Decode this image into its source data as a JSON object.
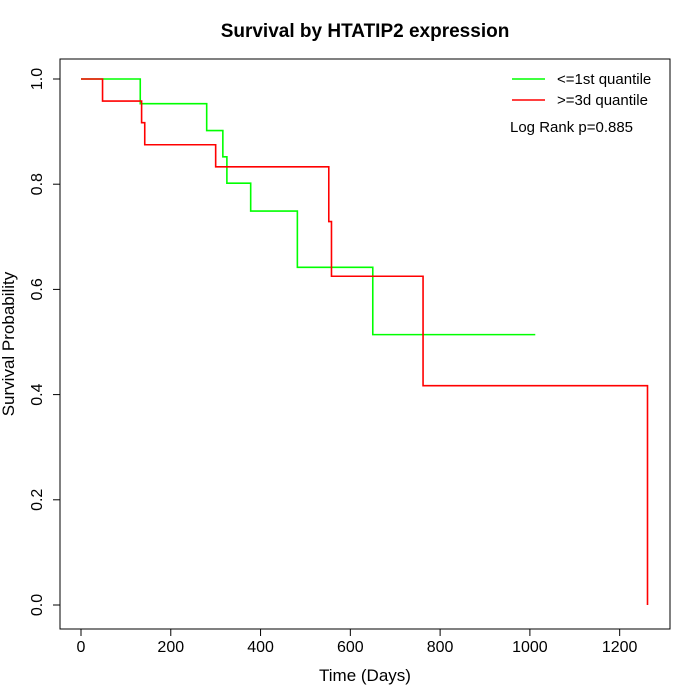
{
  "chart_data": {
    "type": "line",
    "subtype": "kaplan-meier step",
    "title": "Survival by HTATIP2 expression",
    "xlabel": "Time (Days)",
    "ylabel": "Survival Probability",
    "xlim": [
      0,
      1265
    ],
    "ylim": [
      0,
      1.0
    ],
    "xticks": [
      0,
      200,
      400,
      600,
      800,
      1000,
      1200
    ],
    "yticks": [
      0.0,
      0.2,
      0.4,
      0.6,
      0.8,
      1.0
    ],
    "xtick_labels": [
      "0",
      "200",
      "400",
      "600",
      "800",
      "1000",
      "1200"
    ],
    "ytick_labels": [
      "0.0",
      "0.2",
      "0.4",
      "0.6",
      "0.8",
      "1.0"
    ],
    "grid": false,
    "legend_position": "top-right",
    "annotation": "Log Rank p=0.885",
    "series": [
      {
        "name": "<=1st quantile",
        "color": "#00ff00",
        "x": [
          0,
          132,
          280,
          316,
          325,
          378,
          482,
          650,
          1012
        ],
        "y": [
          1.0,
          0.953,
          0.902,
          0.852,
          0.802,
          0.749,
          0.642,
          0.514,
          0.514
        ]
      },
      {
        "name": ">=3d quantile",
        "color": "#ff0000",
        "x": [
          0,
          48,
          135,
          142,
          300,
          552,
          558,
          762,
          1262,
          1262
        ],
        "y": [
          1.0,
          0.958,
          0.917,
          0.875,
          0.833,
          0.729,
          0.625,
          0.417,
          0.417,
          0.0
        ]
      }
    ]
  }
}
